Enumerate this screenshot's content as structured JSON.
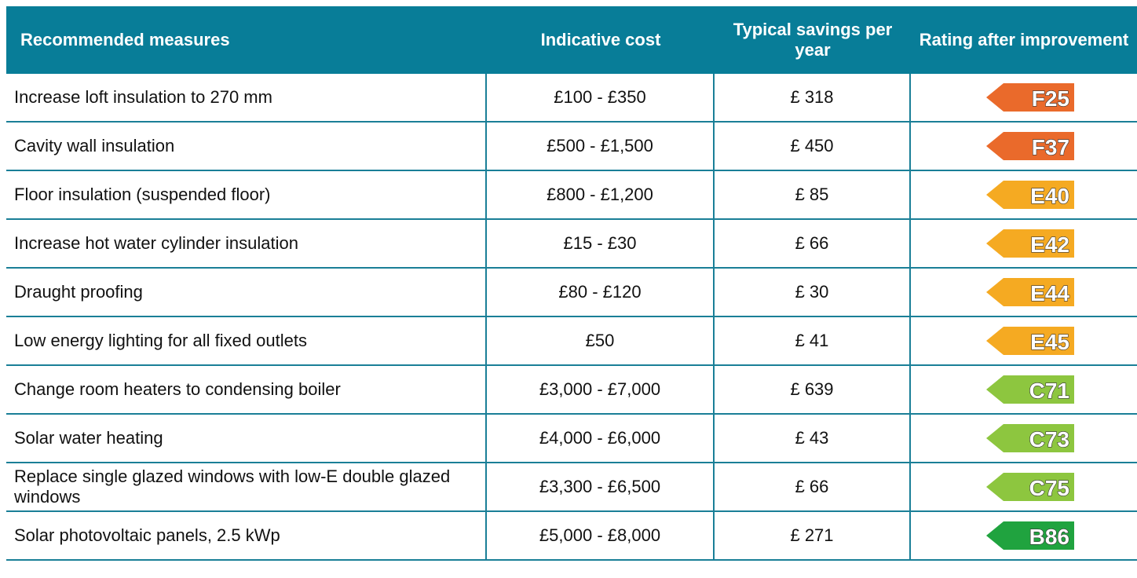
{
  "table": {
    "header": [
      "Recommended measures",
      "Indicative cost",
      "Typical savings per year",
      "Rating after improvement"
    ],
    "rows": [
      [
        "Increase loft insulation to 270 mm",
        "£100 - £350",
        "£ 318",
        "F25"
      ],
      [
        "Cavity wall insulation",
        "£500 - £1,500",
        "£ 450",
        "F37"
      ],
      [
        "Floor insulation (suspended floor)",
        "£800 - £1,200",
        "£ 85",
        "E40"
      ],
      [
        "Increase hot water cylinder insulation",
        "£15 - £30",
        "£ 66",
        "E42"
      ],
      [
        "Draught proofing",
        "£80 - £120",
        "£ 30",
        "E44"
      ],
      [
        "Low energy lighting for all fixed outlets",
        "£50",
        "£ 41",
        "E45"
      ],
      [
        "Change room heaters to condensing boiler",
        "£3,000 - £7,000",
        "£ 639",
        "C71"
      ],
      [
        "Solar water heating",
        "£4,000 - £6,000",
        "£ 43",
        "C73"
      ],
      [
        "Replace single glazed windows with low-E double glazed windows",
        "£3,300 - £6,500",
        "£ 66",
        "C75"
      ],
      [
        "Solar photovoltaic panels, 2.5 kWp",
        "£5,000 - £8,000",
        "£ 271",
        "B86"
      ]
    ],
    "rating_colors": [
      "#ea6a2b",
      "#ea6a2b",
      "#f5aa22",
      "#f5aa22",
      "#f5aa22",
      "#f5aa22",
      "#8dc63f",
      "#8dc63f",
      "#8dc63f",
      "#20a33f"
    ]
  }
}
